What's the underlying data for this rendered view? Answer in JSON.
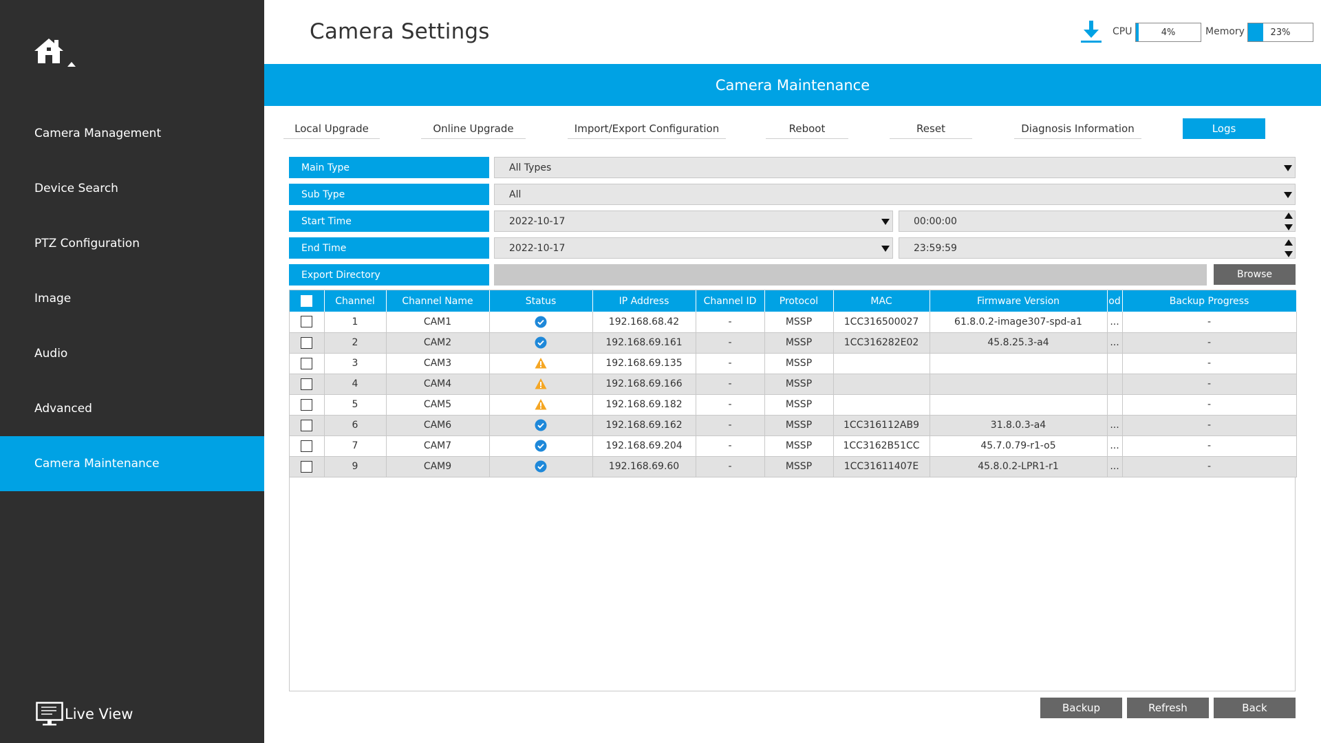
{
  "sidebar": {
    "items": [
      {
        "label": "Camera Management",
        "active": false
      },
      {
        "label": "Device Search",
        "active": false
      },
      {
        "label": "PTZ Configuration",
        "active": false
      },
      {
        "label": "Image",
        "active": false
      },
      {
        "label": "Audio",
        "active": false
      },
      {
        "label": "Advanced",
        "active": false
      },
      {
        "label": "Camera Maintenance",
        "active": true
      }
    ],
    "live_view_label": "Live View",
    "home_icon": "home-icon",
    "live_view_icon": "monitor-icon"
  },
  "header": {
    "title": "Camera Settings",
    "download_icon": "download-icon",
    "cpu_label": "CPU",
    "cpu_value": "4%",
    "cpu_percent": 4,
    "memory_label": "Memory",
    "memory_value": "23%",
    "memory_percent": 23
  },
  "banner": {
    "title": "Camera Maintenance"
  },
  "tabs": [
    {
      "label": "Local Upgrade",
      "active": false
    },
    {
      "label": "Online Upgrade",
      "active": false
    },
    {
      "label": "Import/Export Configuration",
      "active": false
    },
    {
      "label": "Reboot",
      "active": false
    },
    {
      "label": "Reset",
      "active": false
    },
    {
      "label": "Diagnosis Information",
      "active": false
    },
    {
      "label": "Logs",
      "active": true
    }
  ],
  "form": {
    "main_type": {
      "label": "Main Type",
      "value": "All Types"
    },
    "sub_type": {
      "label": "Sub Type",
      "value": "All"
    },
    "start_time": {
      "label": "Start Time",
      "date": "2022-10-17",
      "time": "00:00:00"
    },
    "end_time": {
      "label": "End Time",
      "date": "2022-10-17",
      "time": "23:59:59"
    },
    "export_directory": {
      "label": "Export Directory",
      "value": ""
    },
    "browse_label": "Browse"
  },
  "table": {
    "columns": [
      "",
      "Channel",
      "Channel Name",
      "Status",
      "IP Address",
      "Channel ID",
      "Protocol",
      "MAC",
      "Firmware Version",
      "od",
      "Backup Progress"
    ],
    "rows": [
      {
        "channel": "1",
        "name": "CAM1",
        "status": "ok",
        "ip": "192.168.68.42",
        "channel_id": "-",
        "protocol": "MSSP",
        "mac": "1CC316500027",
        "firmware": "61.8.0.2-image307-spd-a1",
        "od": "...",
        "backup": "-"
      },
      {
        "channel": "2",
        "name": "CAM2",
        "status": "ok",
        "ip": "192.168.69.161",
        "channel_id": "-",
        "protocol": "MSSP",
        "mac": "1CC316282E02",
        "firmware": "45.8.25.3-a4",
        "od": "...",
        "backup": "-"
      },
      {
        "channel": "3",
        "name": "CAM3",
        "status": "warning",
        "ip": "192.168.69.135",
        "channel_id": "-",
        "protocol": "MSSP",
        "mac": "",
        "firmware": "",
        "od": "",
        "backup": "-"
      },
      {
        "channel": "4",
        "name": "CAM4",
        "status": "warning",
        "ip": "192.168.69.166",
        "channel_id": "-",
        "protocol": "MSSP",
        "mac": "",
        "firmware": "",
        "od": "",
        "backup": "-"
      },
      {
        "channel": "5",
        "name": "CAM5",
        "status": "warning",
        "ip": "192.168.69.182",
        "channel_id": "-",
        "protocol": "MSSP",
        "mac": "",
        "firmware": "",
        "od": "",
        "backup": "-"
      },
      {
        "channel": "6",
        "name": "CAM6",
        "status": "ok",
        "ip": "192.168.69.162",
        "channel_id": "-",
        "protocol": "MSSP",
        "mac": "1CC316112AB9",
        "firmware": "31.8.0.3-a4",
        "od": "...",
        "backup": "-"
      },
      {
        "channel": "7",
        "name": "CAM7",
        "status": "ok",
        "ip": "192.168.69.204",
        "channel_id": "-",
        "protocol": "MSSP",
        "mac": "1CC3162B51CC",
        "firmware": "45.7.0.79-r1-o5",
        "od": "...",
        "backup": "-"
      },
      {
        "channel": "9",
        "name": "CAM9",
        "status": "ok",
        "ip": "192.168.69.60",
        "channel_id": "-",
        "protocol": "MSSP",
        "mac": "1CC31611407E",
        "firmware": "45.8.0.2-LPR1-r1",
        "od": "...",
        "backup": "-"
      }
    ]
  },
  "buttons": {
    "backup": "Backup",
    "refresh": "Refresh",
    "back": "Back"
  },
  "colors": {
    "accent": "#00a2e4",
    "sidebar_bg": "#2f2f2f",
    "status_ok": "#1e88d9",
    "status_warning": "#f5a623",
    "button_bg": "#666666"
  }
}
